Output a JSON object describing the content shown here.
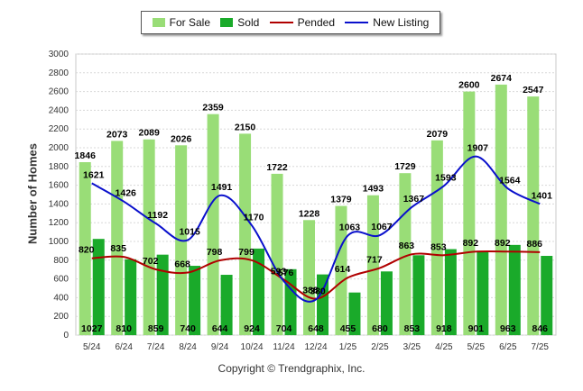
{
  "chart_data": {
    "type": "bar",
    "title": "",
    "ylabel": "Number of Homes",
    "xlabel": "",
    "ylim": [
      0,
      3000
    ],
    "yticks": [
      0,
      200,
      400,
      600,
      800,
      1000,
      1200,
      1400,
      1600,
      1800,
      2000,
      2200,
      2400,
      2600,
      2800,
      3000
    ],
    "categories": [
      "5/24",
      "6/24",
      "7/24",
      "8/24",
      "9/24",
      "10/24",
      "11/24",
      "12/24",
      "1/25",
      "2/25",
      "3/25",
      "4/25",
      "5/25",
      "6/25",
      "7/25"
    ],
    "series": [
      {
        "name": "For Sale",
        "kind": "bar",
        "color": "#99dd77",
        "values": [
          1846,
          2073,
          2089,
          2026,
          2359,
          2150,
          1722,
          1228,
          1379,
          1493,
          1729,
          2079,
          2600,
          2674,
          2547
        ]
      },
      {
        "name": "Sold",
        "kind": "bar",
        "color": "#1aaa2a",
        "values": [
          1027,
          810,
          859,
          740,
          644,
          924,
          704,
          648,
          455,
          680,
          853,
          918,
          901,
          963,
          846
        ]
      },
      {
        "name": "Pended",
        "kind": "line",
        "color": "#b00000",
        "values": [
          820,
          835,
          702,
          668,
          798,
          799,
          593,
          388,
          614,
          717,
          863,
          853,
          892,
          892,
          886
        ]
      },
      {
        "name": "New Listing",
        "kind": "line",
        "color": "#0a10cc",
        "values": [
          1621,
          1426,
          1192,
          1015,
          1491,
          1170,
          576,
          380,
          1063,
          1067,
          1367,
          1593,
          1907,
          1564,
          1401
        ]
      }
    ],
    "grid": true,
    "legend_position": "top"
  },
  "footer": {
    "copyright": "Copyright © Trendgraphix, Inc."
  }
}
